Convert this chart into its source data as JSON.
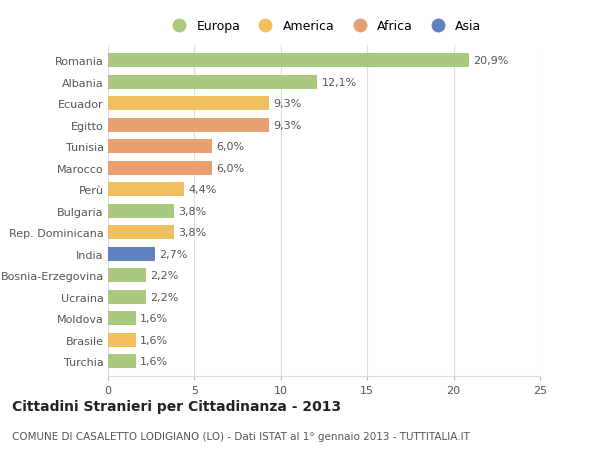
{
  "countries": [
    "Romania",
    "Albania",
    "Ecuador",
    "Egitto",
    "Tunisia",
    "Marocco",
    "Perù",
    "Bulgaria",
    "Rep. Dominicana",
    "India",
    "Bosnia-Erzegovina",
    "Ucraina",
    "Moldova",
    "Brasile",
    "Turchia"
  ],
  "values": [
    20.9,
    12.1,
    9.3,
    9.3,
    6.0,
    6.0,
    4.4,
    3.8,
    3.8,
    2.7,
    2.2,
    2.2,
    1.6,
    1.6,
    1.6
  ],
  "labels": [
    "20,9%",
    "12,1%",
    "9,3%",
    "9,3%",
    "6,0%",
    "6,0%",
    "4,4%",
    "3,8%",
    "3,8%",
    "2,7%",
    "2,2%",
    "2,2%",
    "1,6%",
    "1,6%",
    "1,6%"
  ],
  "continents": [
    "Europa",
    "Europa",
    "America",
    "Africa",
    "Africa",
    "Africa",
    "America",
    "Europa",
    "America",
    "Asia",
    "Europa",
    "Europa",
    "Europa",
    "America",
    "Europa"
  ],
  "continent_colors": {
    "Europa": "#a8c97f",
    "America": "#f0c060",
    "Africa": "#e8a070",
    "Asia": "#6080c0"
  },
  "legend_order": [
    "Europa",
    "America",
    "Africa",
    "Asia"
  ],
  "title": "Cittadini Stranieri per Cittadinanza - 2013",
  "subtitle": "COMUNE DI CASALETTO LODIGIANO (LO) - Dati ISTAT al 1° gennaio 2013 - TUTTITALIA.IT",
  "xlim": [
    0,
    25
  ],
  "xticks": [
    0,
    5,
    10,
    15,
    20,
    25
  ],
  "background_color": "#ffffff",
  "bar_height": 0.65,
  "grid_color": "#dddddd",
  "title_fontsize": 10,
  "subtitle_fontsize": 7.5,
  "label_fontsize": 8,
  "tick_fontsize": 8,
  "legend_fontsize": 9
}
